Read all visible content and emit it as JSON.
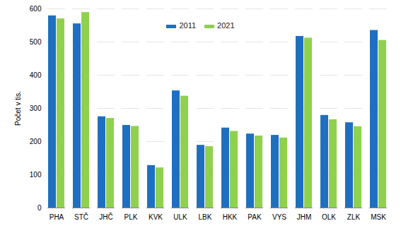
{
  "chart_data": {
    "type": "bar",
    "categories": [
      "PHA",
      "STČ",
      "JHČ",
      "PLK",
      "KVK",
      "ULK",
      "LBK",
      "HKK",
      "PAK",
      "VYS",
      "JHM",
      "OLK",
      "ZLK",
      "MSK"
    ],
    "series": [
      {
        "name": "2011",
        "color": "#1f6fc1",
        "values": [
          579,
          555,
          275,
          249,
          128,
          353,
          189,
          241,
          223,
          219,
          517,
          279,
          257,
          535
        ]
      },
      {
        "name": "2021",
        "color": "#8fd14f",
        "values": [
          570,
          589,
          270,
          246,
          121,
          337,
          185,
          231,
          217,
          211,
          512,
          266,
          245,
          505
        ]
      }
    ],
    "y_label": "Počet v tis.",
    "ylim": [
      0,
      600
    ],
    "yticks": [
      0,
      100,
      200,
      300,
      400,
      500,
      600
    ],
    "grid": true,
    "legend": "top"
  }
}
